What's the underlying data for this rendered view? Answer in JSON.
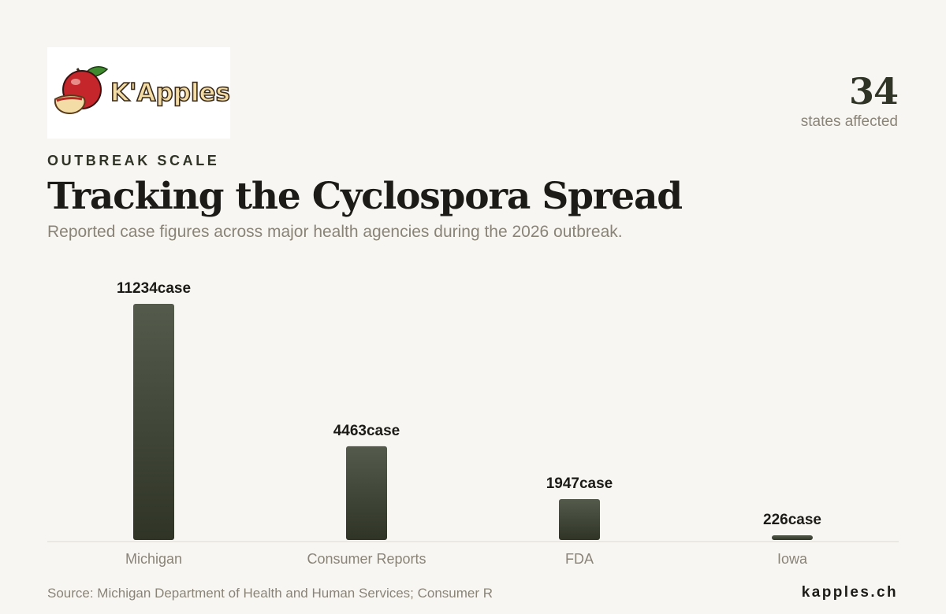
{
  "logo": {
    "text": "K'Apples"
  },
  "stat": {
    "value": "34",
    "label": "states affected"
  },
  "eyebrow": "OUTBREAK SCALE",
  "title": "Tracking the Cyclospora Spread",
  "subtitle": "Reported case figures across major health agencies during the 2026 outbreak.",
  "chart_data": {
    "type": "bar",
    "categories": [
      "Michigan",
      "Consumer Reports",
      "FDA",
      "Iowa"
    ],
    "values": [
      11234,
      4463,
      1947,
      226
    ],
    "value_labels": [
      "11234case",
      "4463case",
      "1947case",
      "226case"
    ],
    "ylim": [
      0,
      11234
    ],
    "grid": false,
    "legend": "none",
    "colors": {
      "bar_top": "#545b4c",
      "bar_bottom": "#2f3426",
      "baseline": "#dedad2",
      "label": "#1c1b17",
      "tick": "#8a8478"
    }
  },
  "footer": {
    "source": "Source: Michigan Department of Health and Human Services; Consumer R",
    "brand": "kapples.ch"
  }
}
